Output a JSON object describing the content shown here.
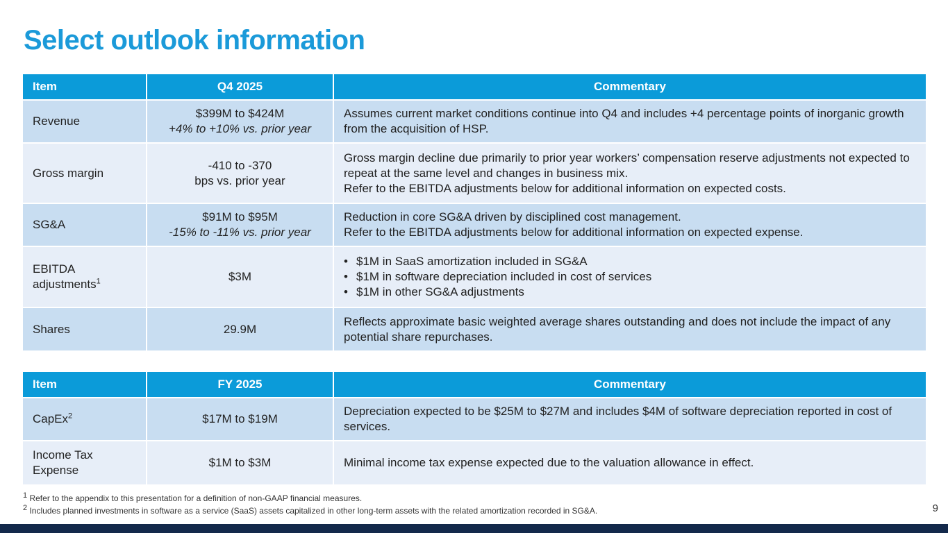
{
  "title": "Select outlook information",
  "table1": {
    "headers": [
      "Item",
      "Q4 2025",
      "Commentary"
    ],
    "rows": [
      {
        "item": "Revenue",
        "value": "$399M to $424M",
        "value_sub": "+4% to +10% vs. prior year",
        "commentary": [
          "Assumes current market conditions continue into Q4 and includes +4 percentage points of inorganic growth from the acquisition of HSP."
        ]
      },
      {
        "item": "Gross margin",
        "value": "-410 to -370",
        "value_sub": "bps vs. prior year",
        "commentary": [
          "Gross margin decline due primarily to prior year workers’ compensation reserve adjustments not expected to repeat at the same level and changes in business mix.",
          "Refer to the EBITDA adjustments below for additional information on expected costs."
        ]
      },
      {
        "item": "SG&A",
        "value": "$91M to $95M",
        "value_sub": "-15% to -11% vs. prior year",
        "commentary": [
          "Reduction in core SG&A driven by disciplined cost management.",
          "Refer to the EBITDA adjustments below for additional information on expected expense."
        ]
      },
      {
        "item": "EBITDA adjustments",
        "item_sup": "1",
        "value": "$3M",
        "bullets": [
          "$1M in SaaS amortization included in SG&A",
          "$1M in software depreciation included in cost of services",
          "$1M in other SG&A adjustments"
        ]
      },
      {
        "item": "Shares",
        "value": "29.9M",
        "commentary": [
          "Reflects approximate basic weighted average shares outstanding and does not include the impact of any potential share repurchases."
        ]
      }
    ]
  },
  "table2": {
    "headers": [
      "Item",
      "FY 2025",
      "Commentary"
    ],
    "rows": [
      {
        "item": "CapEx",
        "item_sup": "2",
        "value": "$17M to $19M",
        "commentary": [
          "Depreciation expected to be $25M to $27M and includes $4M of software depreciation reported in cost of services."
        ]
      },
      {
        "item": "Income Tax Expense",
        "value": "$1M to $3M",
        "commentary": [
          "Minimal income tax expense expected due to the valuation allowance in effect."
        ]
      }
    ]
  },
  "footnotes": [
    {
      "num": "1",
      "text": "Refer to the appendix to this presentation for a definition of non-GAAP financial measures."
    },
    {
      "num": "2",
      "text": "Includes planned investments in software as a service (SaaS) assets capitalized in other long-term assets with the related amortization recorded in SG&A."
    }
  ],
  "page_number": "9",
  "colors": {
    "accent": "#1b9ad9",
    "header": "#0b9bd9",
    "row_odd": "#c8ddf1",
    "row_even": "#e7eef8",
    "footer_bar": "#13294b"
  }
}
